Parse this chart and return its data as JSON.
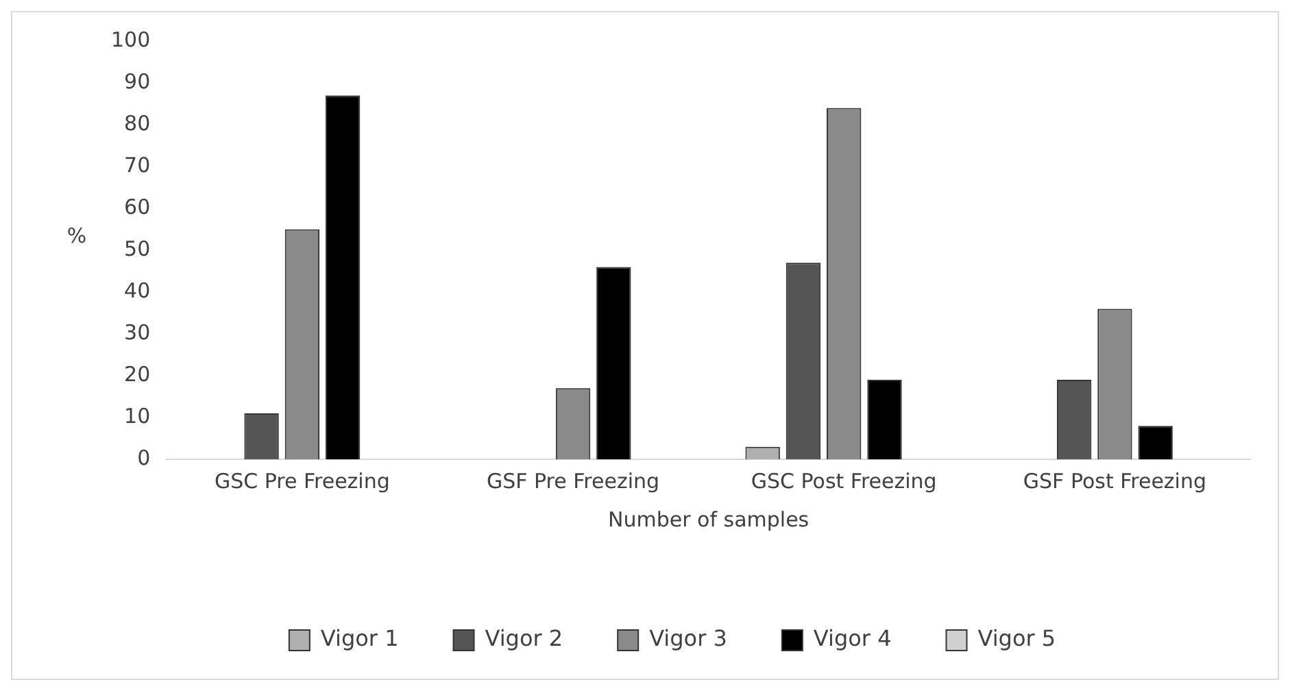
{
  "chart_data": {
    "type": "bar",
    "xlabel": "Number of samples",
    "ylabel": "%",
    "categories": [
      "GSC Pre Freezing",
      "GSF Pre Freezing",
      "GSC Post Freezing",
      "GSF Post Freezing"
    ],
    "series": [
      {
        "name": "Vigor 1",
        "color": "#b0b0b0",
        "values": [
          0,
          0,
          3,
          0
        ]
      },
      {
        "name": "Vigor 2",
        "color": "#555555",
        "values": [
          11,
          0,
          47,
          19
        ]
      },
      {
        "name": "Vigor 3",
        "color": "#8a8a8a",
        "values": [
          55,
          17,
          84,
          36
        ]
      },
      {
        "name": "Vigor 4",
        "color": "#000000",
        "values": [
          87,
          46,
          19,
          8
        ]
      },
      {
        "name": "Vigor 5",
        "color": "#d0d0d0",
        "values": [
          0,
          0,
          0,
          0
        ]
      }
    ],
    "ylim": [
      0,
      100
    ],
    "yticks": [
      0,
      10,
      20,
      30,
      40,
      50,
      60,
      70,
      80,
      90,
      100
    ],
    "grid": false,
    "legend": "bottom"
  }
}
